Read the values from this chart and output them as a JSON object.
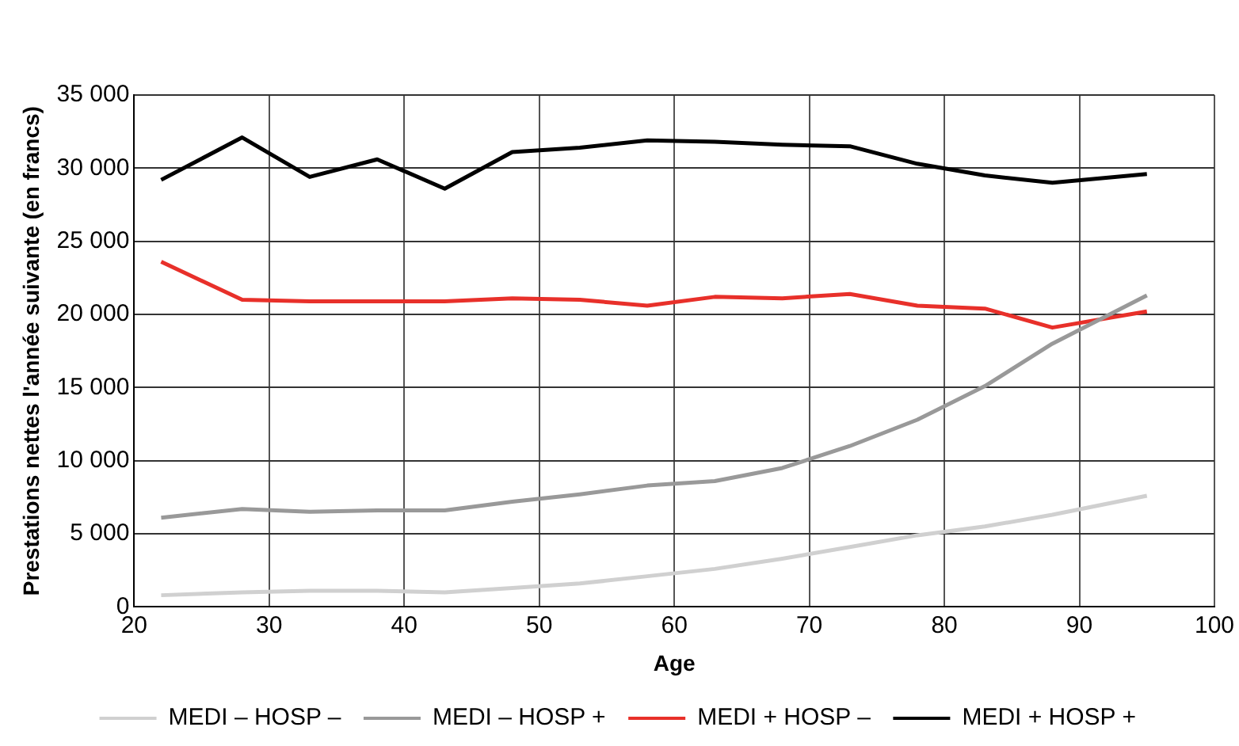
{
  "chart_data": {
    "type": "line",
    "xlabel": "Age",
    "ylabel": "Prestations nettes l'année suivante (en francs)",
    "x": [
      22,
      28,
      33,
      38,
      43,
      48,
      53,
      58,
      63,
      68,
      73,
      78,
      83,
      88,
      95
    ],
    "series": [
      {
        "name": "MEDI – HOSP –",
        "color": "#d0d0d0",
        "values": [
          800,
          1000,
          1100,
          1100,
          1000,
          1300,
          1600,
          2100,
          2600,
          3300,
          4100,
          4900,
          5500,
          6300,
          7600
        ]
      },
      {
        "name": "MEDI – HOSP +",
        "color": "#999999",
        "values": [
          6100,
          6700,
          6500,
          6600,
          6600,
          7200,
          7700,
          8300,
          8600,
          9500,
          11000,
          12800,
          15100,
          18000,
          21300
        ]
      },
      {
        "name": "MEDI + HOSP –",
        "color": "#e8302a",
        "values": [
          23600,
          21000,
          20900,
          20900,
          20900,
          21100,
          21000,
          20600,
          21200,
          21100,
          21400,
          20600,
          20400,
          19100,
          20200
        ]
      },
      {
        "name": "MEDI + HOSP +",
        "color": "#000000",
        "values": [
          29200,
          32100,
          29400,
          30600,
          28600,
          31100,
          31400,
          31900,
          31800,
          31600,
          31500,
          30300,
          29500,
          29000,
          29600
        ]
      }
    ],
    "xlim": [
      20,
      100
    ],
    "xticks": [
      20,
      30,
      40,
      50,
      60,
      70,
      80,
      90,
      100
    ],
    "ylim": [
      0,
      35000
    ],
    "yticks": [
      {
        "value": 0,
        "label": "0"
      },
      {
        "value": 5000,
        "label": "5 000"
      },
      {
        "value": 10000,
        "label": "10 000"
      },
      {
        "value": 15000,
        "label": "15 000"
      },
      {
        "value": 20000,
        "label": "20 000"
      },
      {
        "value": 25000,
        "label": "25 000"
      },
      {
        "value": 30000,
        "label": "30 000"
      },
      {
        "value": 35000,
        "label": "35 000"
      }
    ],
    "grid": true,
    "legend": "bottom",
    "marker": "none",
    "line_style": "solid"
  }
}
